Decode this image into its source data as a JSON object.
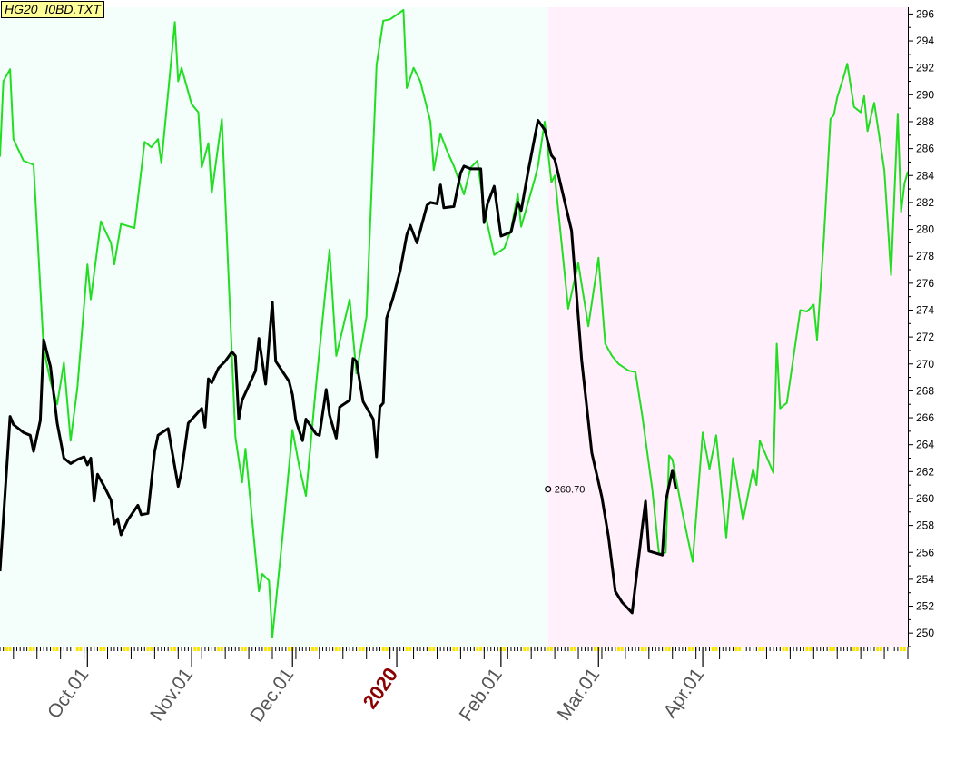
{
  "title": "HG20_I0BD.TXT",
  "chart_data": {
    "type": "line",
    "title": "HG20_I0BD.TXT",
    "ylim": [
      249,
      296.5
    ],
    "y_ticks": [
      250,
      252,
      254,
      256,
      258,
      260,
      262,
      264,
      266,
      268,
      270,
      272,
      274,
      276,
      278,
      280,
      282,
      284,
      286,
      288,
      290,
      292,
      294,
      296
    ],
    "x_tick_labels": [
      {
        "label": "Oct.01",
        "date": "2019-10-01",
        "year": false
      },
      {
        "label": "Nov.01",
        "date": "2019-11-01",
        "year": false
      },
      {
        "label": "Dec.01",
        "date": "2019-12-01",
        "year": false
      },
      {
        "label": "2020",
        "date": "2020-01-01",
        "year": true
      },
      {
        "label": "Feb.01",
        "date": "2020-02-01",
        "year": false
      },
      {
        "label": "Mar.01",
        "date": "2020-03-01",
        "year": false
      },
      {
        "label": "Apr.01",
        "date": "2020-04-01",
        "year": false
      }
    ],
    "grid": false,
    "history_background": "#f4fffc",
    "projection_background": "#fff0fb",
    "projection_start": "2020-02-15",
    "annotation": {
      "text": "260.70",
      "date": "2020-02-15",
      "value": 260.7
    },
    "series": [
      {
        "color": "#000000",
        "points": [
          [
            "2019-09-05",
            254.6
          ],
          [
            "2019-09-08",
            266.1
          ],
          [
            "2019-09-09",
            265.5
          ],
          [
            "2019-09-12",
            264.9
          ],
          [
            "2019-09-14",
            264.7
          ],
          [
            "2019-09-15",
            263.5
          ],
          [
            "2019-09-17",
            265.8
          ],
          [
            "2019-09-18",
            271.8
          ],
          [
            "2019-09-20",
            269.8
          ],
          [
            "2019-09-22",
            265.6
          ],
          [
            "2019-09-24",
            263.0
          ],
          [
            "2019-09-26",
            262.6
          ],
          [
            "2019-09-28",
            262.9
          ],
          [
            "2019-09-30",
            263.1
          ],
          [
            "2019-10-01",
            262.5
          ],
          [
            "2019-10-02",
            263.0
          ],
          [
            "2019-10-03",
            259.8
          ],
          [
            "2019-10-04",
            261.8
          ],
          [
            "2019-10-06",
            260.9
          ],
          [
            "2019-10-08",
            259.9
          ],
          [
            "2019-10-09",
            258.1
          ],
          [
            "2019-10-10",
            258.5
          ],
          [
            "2019-10-11",
            257.3
          ],
          [
            "2019-10-13",
            258.4
          ],
          [
            "2019-10-16",
            259.5
          ],
          [
            "2019-10-17",
            258.8
          ],
          [
            "2019-10-19",
            258.9
          ],
          [
            "2019-10-21",
            263.5
          ],
          [
            "2019-10-22",
            264.7
          ],
          [
            "2019-10-25",
            265.2
          ],
          [
            "2019-10-28",
            260.9
          ],
          [
            "2019-10-29",
            262.0
          ],
          [
            "2019-10-31",
            265.6
          ],
          [
            "2019-11-04",
            266.7
          ],
          [
            "2019-11-05",
            265.3
          ],
          [
            "2019-11-06",
            268.9
          ],
          [
            "2019-11-07",
            268.6
          ],
          [
            "2019-11-09",
            269.7
          ],
          [
            "2019-11-11",
            270.2
          ],
          [
            "2019-11-13",
            270.9
          ],
          [
            "2019-11-14",
            270.6
          ],
          [
            "2019-11-15",
            265.9
          ],
          [
            "2019-11-16",
            267.3
          ],
          [
            "2019-11-20",
            269.5
          ],
          [
            "2019-11-21",
            271.9
          ],
          [
            "2019-11-23",
            268.5
          ],
          [
            "2019-11-25",
            274.6
          ],
          [
            "2019-11-26",
            270.2
          ],
          [
            "2019-11-30",
            268.7
          ],
          [
            "2019-12-01",
            267.7
          ],
          [
            "2019-12-02",
            265.8
          ],
          [
            "2019-12-04",
            264.3
          ],
          [
            "2019-12-05",
            265.9
          ],
          [
            "2019-12-08",
            264.8
          ],
          [
            "2019-12-09",
            264.7
          ],
          [
            "2019-12-11",
            268.1
          ],
          [
            "2019-12-12",
            266.2
          ],
          [
            "2019-12-14",
            264.5
          ],
          [
            "2019-12-15",
            266.8
          ],
          [
            "2019-12-18",
            267.3
          ],
          [
            "2019-12-19",
            270.4
          ],
          [
            "2019-12-20",
            270.2
          ],
          [
            "2019-12-22",
            267.2
          ],
          [
            "2019-12-25",
            265.9
          ],
          [
            "2019-12-26",
            263.1
          ],
          [
            "2019-12-27",
            266.8
          ],
          [
            "2019-12-28",
            267.1
          ],
          [
            "2019-12-29",
            273.4
          ],
          [
            "2019-12-31",
            275.0
          ],
          [
            "2020-01-02",
            276.9
          ],
          [
            "2020-01-04",
            279.6
          ],
          [
            "2020-01-05",
            280.3
          ],
          [
            "2020-01-07",
            279.0
          ],
          [
            "2020-01-10",
            281.8
          ],
          [
            "2020-01-11",
            282.0
          ],
          [
            "2020-01-13",
            281.9
          ],
          [
            "2020-01-14",
            283.3
          ],
          [
            "2020-01-15",
            281.6
          ],
          [
            "2020-01-18",
            281.7
          ],
          [
            "2020-01-20",
            284.2
          ],
          [
            "2020-01-21",
            284.7
          ],
          [
            "2020-01-23",
            284.5
          ],
          [
            "2020-01-26",
            284.5
          ],
          [
            "2020-01-27",
            280.5
          ],
          [
            "2020-01-28",
            281.9
          ],
          [
            "2020-01-30",
            283.2
          ],
          [
            "2020-02-01",
            279.5
          ],
          [
            "2020-02-03",
            279.7
          ],
          [
            "2020-02-04",
            279.8
          ],
          [
            "2020-02-06",
            282.0
          ],
          [
            "2020-02-07",
            281.4
          ],
          [
            "2020-02-09",
            284.2
          ],
          [
            "2020-02-12",
            288.1
          ],
          [
            "2020-02-14",
            287.4
          ],
          [
            "2020-02-16",
            285.5
          ],
          [
            "2020-02-17",
            285.2
          ],
          [
            "2020-02-22",
            279.9
          ],
          [
            "2020-02-25",
            270.3
          ],
          [
            "2020-02-28",
            263.4
          ],
          [
            "2020-03-02",
            260.1
          ],
          [
            "2020-03-04",
            257.1
          ],
          [
            "2020-03-06",
            253.1
          ],
          [
            "2020-03-08",
            252.3
          ],
          [
            "2020-03-11",
            251.5
          ],
          [
            "2020-03-14",
            257.8
          ],
          [
            "2020-03-15",
            259.8
          ],
          [
            "2020-03-16",
            256.1
          ],
          [
            "2020-03-20",
            255.8
          ],
          [
            "2020-03-21",
            259.8
          ],
          [
            "2020-03-23",
            262.1
          ],
          [
            "2020-03-24",
            260.7
          ]
        ]
      },
      {
        "color": "#22dd22",
        "points": [
          [
            "2019-09-05",
            285.4
          ],
          [
            "2019-09-06",
            291.0
          ],
          [
            "2019-09-08",
            291.9
          ],
          [
            "2019-09-09",
            286.7
          ],
          [
            "2019-09-12",
            285.1
          ],
          [
            "2019-09-15",
            284.8
          ],
          [
            "2019-09-18",
            271.1
          ],
          [
            "2019-09-20",
            268.7
          ],
          [
            "2019-09-22",
            267.0
          ],
          [
            "2019-09-24",
            270.1
          ],
          [
            "2019-09-26",
            264.3
          ],
          [
            "2019-09-28",
            268.2
          ],
          [
            "2019-10-01",
            277.4
          ],
          [
            "2019-10-02",
            274.8
          ],
          [
            "2019-10-05",
            280.6
          ],
          [
            "2019-10-08",
            279.0
          ],
          [
            "2019-10-09",
            277.4
          ],
          [
            "2019-10-11",
            280.4
          ],
          [
            "2019-10-15",
            280.1
          ],
          [
            "2019-10-18",
            286.5
          ],
          [
            "2019-10-20",
            286.1
          ],
          [
            "2019-10-22",
            286.7
          ],
          [
            "2019-10-23",
            284.9
          ],
          [
            "2019-10-27",
            295.4
          ],
          [
            "2019-10-28",
            291.0
          ],
          [
            "2019-10-29",
            292.0
          ],
          [
            "2019-11-01",
            289.3
          ],
          [
            "2019-11-03",
            288.7
          ],
          [
            "2019-11-04",
            284.6
          ],
          [
            "2019-11-06",
            286.4
          ],
          [
            "2019-11-07",
            282.7
          ],
          [
            "2019-11-10",
            288.2
          ],
          [
            "2019-11-14",
            264.6
          ],
          [
            "2019-11-16",
            261.2
          ],
          [
            "2019-11-17",
            263.7
          ],
          [
            "2019-11-21",
            253.1
          ],
          [
            "2019-11-22",
            254.4
          ],
          [
            "2019-11-24",
            253.9
          ],
          [
            "2019-11-25",
            249.7
          ],
          [
            "2019-11-28",
            257.1
          ],
          [
            "2019-12-01",
            265.1
          ],
          [
            "2019-12-03",
            262.4
          ],
          [
            "2019-12-05",
            260.2
          ],
          [
            "2019-12-08",
            268.4
          ],
          [
            "2019-12-12",
            278.5
          ],
          [
            "2019-12-14",
            270.6
          ],
          [
            "2019-12-18",
            274.8
          ],
          [
            "2019-12-20",
            269.3
          ],
          [
            "2019-12-23",
            273.5
          ],
          [
            "2019-12-26",
            292.2
          ],
          [
            "2019-12-28",
            295.5
          ],
          [
            "2019-12-30",
            295.6
          ],
          [
            "2020-01-03",
            296.3
          ],
          [
            "2020-01-04",
            290.5
          ],
          [
            "2020-01-06",
            292.0
          ],
          [
            "2020-01-08",
            291.0
          ],
          [
            "2020-01-11",
            288.0
          ],
          [
            "2020-01-12",
            284.4
          ],
          [
            "2020-01-14",
            287.1
          ],
          [
            "2020-01-16",
            285.8
          ],
          [
            "2020-01-18",
            284.7
          ],
          [
            "2020-01-21",
            282.6
          ],
          [
            "2020-01-23",
            284.6
          ],
          [
            "2020-01-25",
            285.1
          ],
          [
            "2020-01-27",
            281.5
          ],
          [
            "2020-01-30",
            278.1
          ],
          [
            "2020-02-02",
            278.6
          ],
          [
            "2020-02-04",
            280.0
          ],
          [
            "2020-02-06",
            282.6
          ],
          [
            "2020-02-07",
            280.2
          ],
          [
            "2020-02-11",
            283.7
          ],
          [
            "2020-02-12",
            284.7
          ],
          [
            "2020-02-14",
            288.0
          ],
          [
            "2020-02-16",
            283.5
          ],
          [
            "2020-02-17",
            284.0
          ],
          [
            "2020-02-21",
            274.1
          ],
          [
            "2020-02-24",
            277.5
          ],
          [
            "2020-02-27",
            272.8
          ],
          [
            "2020-03-01",
            277.9
          ],
          [
            "2020-03-03",
            271.5
          ],
          [
            "2020-03-05",
            270.6
          ],
          [
            "2020-03-07",
            270.0
          ],
          [
            "2020-03-10",
            269.5
          ],
          [
            "2020-03-12",
            269.4
          ],
          [
            "2020-03-14",
            266.2
          ],
          [
            "2020-03-17",
            260.7
          ],
          [
            "2020-03-19",
            255.9
          ],
          [
            "2020-03-21",
            256.0
          ],
          [
            "2020-03-22",
            263.2
          ],
          [
            "2020-03-23",
            262.9
          ],
          [
            "2020-03-26",
            258.9
          ],
          [
            "2020-03-29",
            255.3
          ],
          [
            "2020-04-01",
            264.9
          ],
          [
            "2020-04-03",
            262.2
          ],
          [
            "2020-04-05",
            264.7
          ],
          [
            "2020-04-08",
            257.1
          ],
          [
            "2020-04-10",
            263.0
          ],
          [
            "2020-04-13",
            258.4
          ],
          [
            "2020-04-16",
            262.2
          ],
          [
            "2020-04-17",
            261.0
          ],
          [
            "2020-04-18",
            264.3
          ],
          [
            "2020-04-22",
            261.9
          ],
          [
            "2020-04-23",
            271.5
          ],
          [
            "2020-04-24",
            266.7
          ],
          [
            "2020-04-26",
            267.1
          ],
          [
            "2020-04-30",
            274.0
          ],
          [
            "2020-05-02",
            273.9
          ],
          [
            "2020-05-04",
            274.4
          ],
          [
            "2020-05-05",
            271.8
          ],
          [
            "2020-05-07",
            279.2
          ],
          [
            "2020-05-09",
            288.2
          ],
          [
            "2020-05-10",
            288.5
          ],
          [
            "2020-05-11",
            289.8
          ],
          [
            "2020-05-13",
            291.4
          ],
          [
            "2020-05-14",
            292.3
          ],
          [
            "2020-05-16",
            289.1
          ],
          [
            "2020-05-18",
            288.7
          ],
          [
            "2020-05-19",
            289.9
          ],
          [
            "2020-05-20",
            287.3
          ],
          [
            "2020-05-22",
            289.4
          ],
          [
            "2020-05-25",
            284.4
          ],
          [
            "2020-05-27",
            276.6
          ],
          [
            "2020-05-29",
            288.6
          ],
          [
            "2020-05-30",
            281.3
          ],
          [
            "2020-05-31",
            283.4
          ],
          [
            "2020-06-01",
            284.3
          ]
        ]
      }
    ]
  }
}
